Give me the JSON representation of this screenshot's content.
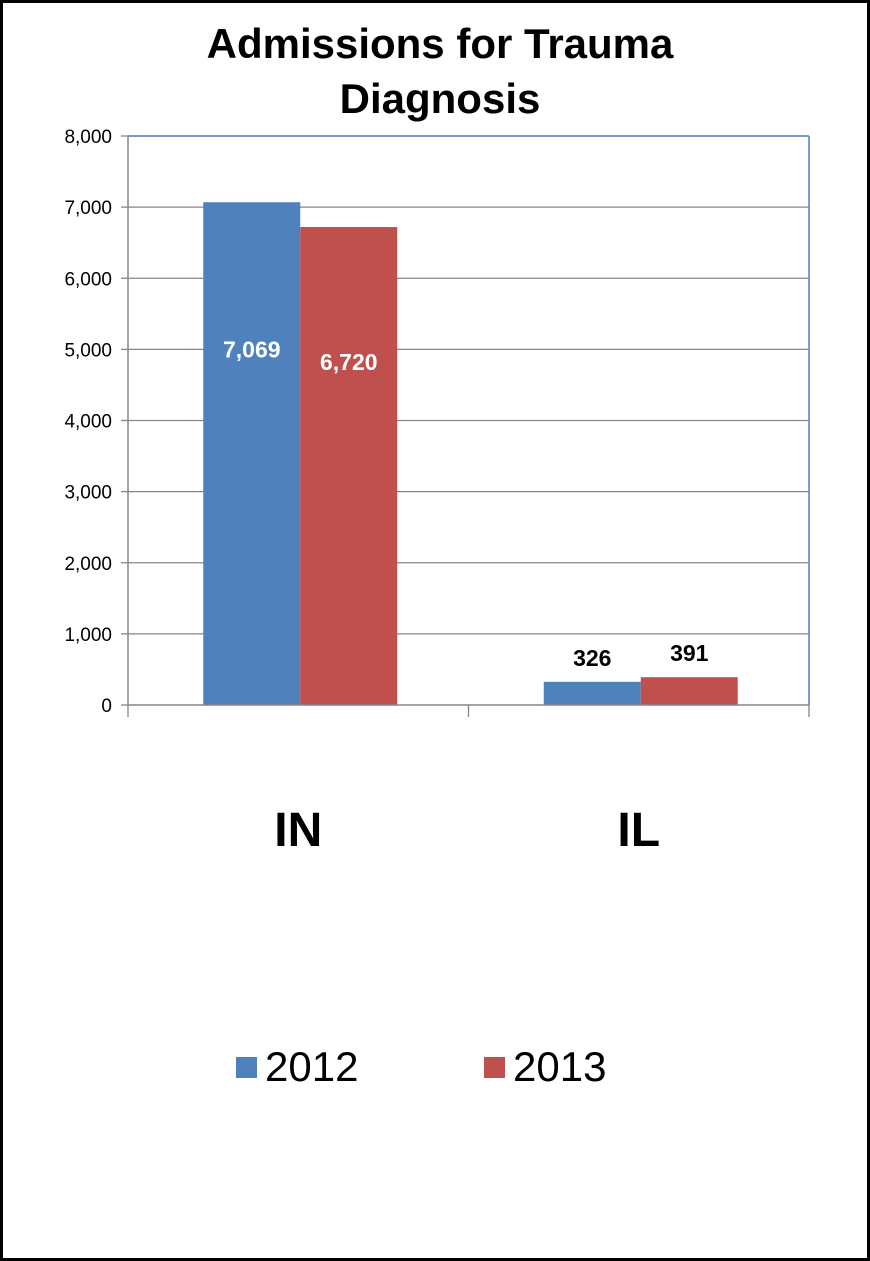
{
  "chart_data": {
    "type": "bar",
    "title_lines": [
      "Admissions for Trauma",
      "Diagnosis"
    ],
    "categories": [
      "IN",
      "IL"
    ],
    "series": [
      {
        "name": "2012",
        "values": [
          7069,
          326
        ],
        "color": "#4F81BD",
        "labels": [
          "7,069",
          "326"
        ]
      },
      {
        "name": "2013",
        "values": [
          6720,
          391
        ],
        "color": "#C0504D",
        "labels": [
          "6,720",
          "391"
        ]
      }
    ],
    "ylim": [
      0,
      8000
    ],
    "yticks": [
      0,
      1000,
      2000,
      3000,
      4000,
      5000,
      6000,
      7000,
      8000
    ],
    "ytick_labels": [
      "0",
      "1,000",
      "2,000",
      "3,000",
      "4,000",
      "5,000",
      "6,000",
      "7,000",
      "8,000"
    ],
    "grid": true,
    "legend_position": "bottom",
    "plot_border_color": "#4F81BD",
    "gridline_color": "#868686"
  }
}
